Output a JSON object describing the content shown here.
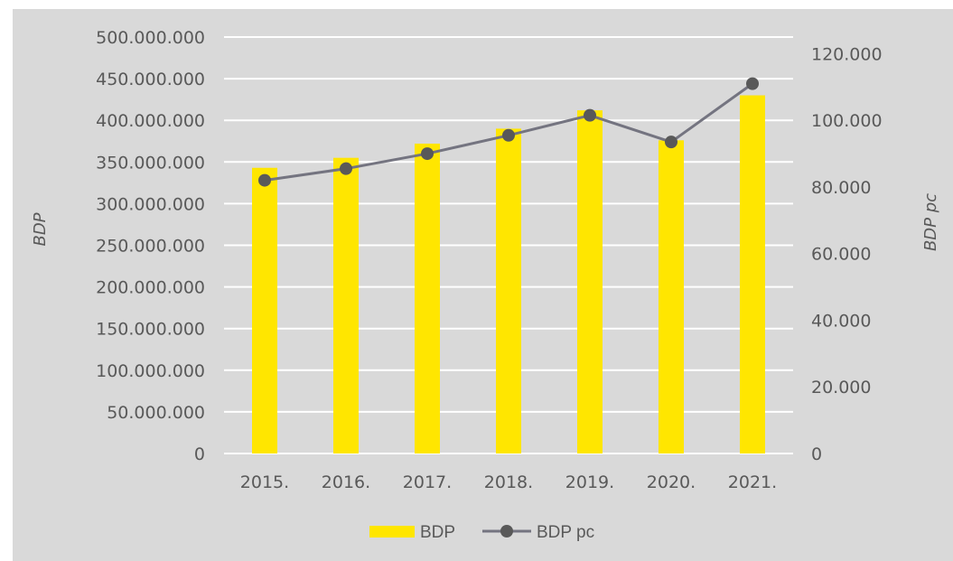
{
  "chart_data": {
    "type": "bar",
    "categories": [
      "2015.",
      "2016.",
      "2017.",
      "2018.",
      "2019.",
      "2020.",
      "2021."
    ],
    "series": [
      {
        "name": "BDP",
        "type": "bar",
        "axis": "left",
        "color": "#ffe600",
        "values": [
          343000000,
          355000000,
          372000000,
          390000000,
          412000000,
          376000000,
          430000000
        ]
      },
      {
        "name": "BDP pc",
        "type": "line",
        "axis": "right",
        "color": "#747480",
        "marker_color": "#595959",
        "values": [
          82000,
          85500,
          90000,
          95500,
          101500,
          93500,
          111000
        ]
      }
    ],
    "ylabel": "BDP",
    "ylabel_right": "BDP pc",
    "ylim": [
      0,
      500000000
    ],
    "ylim_right": [
      0,
      125000
    ],
    "yticks": [
      "0",
      "50.000.000",
      "100.000.000",
      "150.000.000",
      "200.000.000",
      "250.000.000",
      "300.000.000",
      "350.000.000",
      "400.000.000",
      "450.000.000",
      "500.000.000"
    ],
    "yticks_right": [
      "0",
      "20.000",
      "40.000",
      "60.000",
      "80.000",
      "100.000",
      "120.000"
    ],
    "grid": true,
    "legend": "bottom",
    "background": "#d9d9d9",
    "gridline_color": "#ffffff"
  }
}
